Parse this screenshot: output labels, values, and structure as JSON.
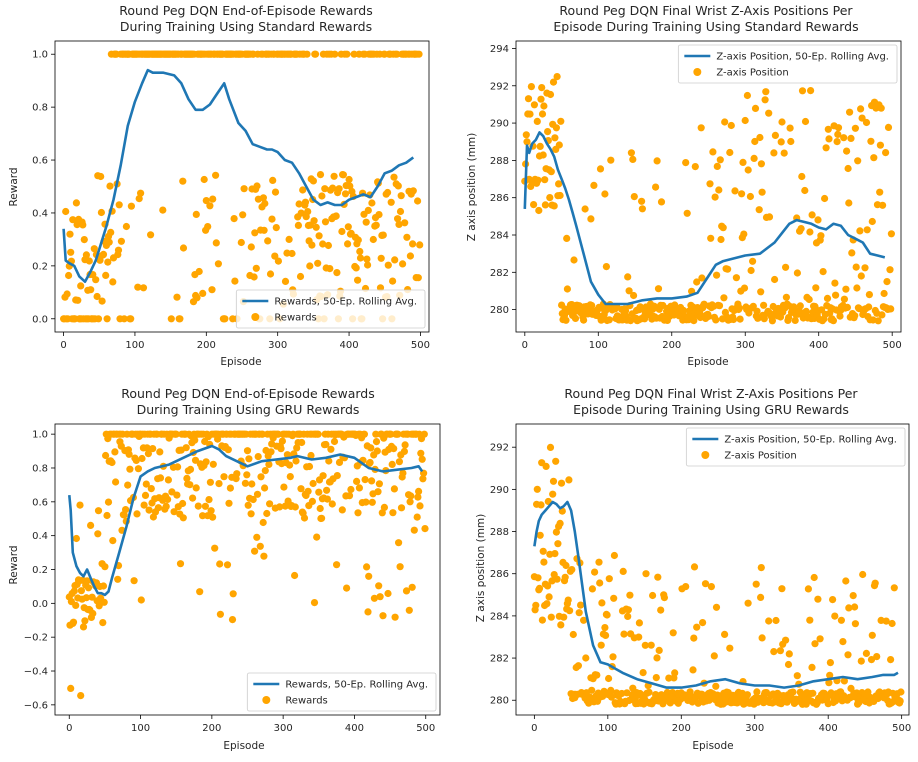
{
  "colors": {
    "line": "#1f77b4",
    "scatter": "#ffa500"
  },
  "chart_data": [
    {
      "type": "scatter",
      "title_line1": "Round Peg DQN End-of-Episode Rewards",
      "title_line2": "During Training Using Standard Rewards",
      "xlabel": "Episode",
      "ylabel": "Reward",
      "xlim": [
        -12,
        512
      ],
      "ylim": [
        -0.05,
        1.05
      ],
      "xticks": [
        0,
        100,
        200,
        300,
        400,
        500
      ],
      "yticks": [
        0.0,
        0.2,
        0.4,
        0.6,
        0.8,
        1.0
      ],
      "ytick_labels": [
        "0.0",
        "0.2",
        "0.4",
        "0.6",
        "0.8",
        "1.0"
      ],
      "legend": {
        "position": "lower-right",
        "line_label": "Rewards, 50-Ep. Rolling Avg.",
        "scatter_label": "Rewards"
      },
      "rolling_avg": {
        "x": [
          0,
          3,
          8,
          15,
          22,
          30,
          38,
          45,
          52,
          60,
          70,
          80,
          90,
          100,
          110,
          118,
          125,
          140,
          155,
          165,
          175,
          185,
          195,
          205,
          215,
          225,
          232,
          245,
          255,
          265,
          275,
          285,
          292,
          300,
          310,
          320,
          330,
          340,
          350,
          360,
          370,
          380,
          390,
          400,
          410,
          420,
          430,
          440,
          450,
          460,
          470,
          480,
          490
        ],
        "y": [
          0.34,
          0.22,
          0.21,
          0.2,
          0.16,
          0.14,
          0.18,
          0.22,
          0.28,
          0.35,
          0.45,
          0.58,
          0.73,
          0.82,
          0.89,
          0.94,
          0.93,
          0.93,
          0.92,
          0.89,
          0.83,
          0.79,
          0.79,
          0.81,
          0.85,
          0.89,
          0.83,
          0.74,
          0.71,
          0.66,
          0.65,
          0.64,
          0.64,
          0.63,
          0.6,
          0.59,
          0.55,
          0.5,
          0.45,
          0.43,
          0.44,
          0.43,
          0.43,
          0.45,
          0.46,
          0.47,
          0.46,
          0.5,
          0.55,
          0.56,
          0.58,
          0.59,
          0.61
        ]
      },
      "scatter": {
        "generated": true,
        "kind": "std_reward",
        "seed": 11
      }
    },
    {
      "type": "scatter",
      "title_line1": "Round Peg DQN Final Wrist Z-Axis Positions Per",
      "title_line2": "Episode During Training Using Standard Rewards",
      "xlabel": "Episode",
      "ylabel": "Z axis position (mm)",
      "xlim": [
        -12,
        512
      ],
      "ylim": [
        278.8,
        294.4
      ],
      "xticks": [
        0,
        100,
        200,
        300,
        400,
        500
      ],
      "yticks": [
        280,
        282,
        284,
        286,
        288,
        290,
        292,
        294
      ],
      "ytick_labels": [
        "280",
        "282",
        "284",
        "286",
        "288",
        "290",
        "292",
        "294"
      ],
      "legend": {
        "position": "upper-right",
        "line_label": "Z-axis Position, 50-Ep. Rolling Avg.",
        "scatter_label": "Z-axis Position"
      },
      "rolling_avg": {
        "x": [
          0,
          3,
          6,
          10,
          15,
          20,
          25,
          30,
          35,
          40,
          45,
          50,
          55,
          60,
          65,
          70,
          80,
          90,
          100,
          110,
          120,
          140,
          160,
          180,
          200,
          220,
          235,
          250,
          260,
          270,
          280,
          300,
          320,
          340,
          350,
          360,
          370,
          380,
          390,
          400,
          410,
          420,
          430,
          440,
          450,
          460,
          470,
          480,
          490
        ],
        "y": [
          285.4,
          288.8,
          288.4,
          288.9,
          289.1,
          289.5,
          289.3,
          288.9,
          288.6,
          288.2,
          287.5,
          287.0,
          286.5,
          285.9,
          285.2,
          284.5,
          283.0,
          281.5,
          280.8,
          280.3,
          280.3,
          280.3,
          280.5,
          280.6,
          280.6,
          280.7,
          280.9,
          281.8,
          282.4,
          282.6,
          282.7,
          282.9,
          283.0,
          283.6,
          284.1,
          284.6,
          284.8,
          284.7,
          284.6,
          284.4,
          284.3,
          284.6,
          284.5,
          284.0,
          283.8,
          283.6,
          283.0,
          282.9,
          282.8
        ]
      },
      "scatter": {
        "generated": true,
        "kind": "std_z",
        "seed": 23
      }
    },
    {
      "type": "scatter",
      "title_line1": "Round Peg DQN End-of-Episode Rewards",
      "title_line2": "During Training Using GRU Rewards",
      "xlabel": "Episode",
      "ylabel": "Reward",
      "xlim": [
        -20,
        520
      ],
      "ylim": [
        -0.66,
        1.06
      ],
      "xticks": [
        0,
        100,
        200,
        300,
        400,
        500
      ],
      "yticks": [
        -0.6,
        -0.4,
        -0.2,
        0.0,
        0.2,
        0.4,
        0.6,
        0.8,
        1.0
      ],
      "ytick_labels": [
        "−0.6",
        "−0.4",
        "−0.2",
        "0.0",
        "0.2",
        "0.4",
        "0.6",
        "0.8",
        "1.0"
      ],
      "legend": {
        "position": "lower-right",
        "line_label": "Rewards, 50-Ep. Rolling Avg.",
        "scatter_label": "Rewards"
      },
      "rolling_avg": {
        "x": [
          0,
          2,
          5,
          10,
          15,
          20,
          25,
          30,
          35,
          40,
          45,
          50,
          55,
          60,
          70,
          80,
          90,
          100,
          110,
          120,
          140,
          160,
          180,
          200,
          210,
          220,
          235,
          250,
          270,
          290,
          310,
          320,
          340,
          360,
          380,
          400,
          410,
          420,
          440,
          460,
          480,
          490,
          495
        ],
        "y": [
          0.64,
          0.55,
          0.3,
          0.22,
          0.18,
          0.16,
          0.2,
          0.15,
          0.1,
          0.06,
          0.06,
          0.05,
          0.07,
          0.15,
          0.3,
          0.45,
          0.62,
          0.75,
          0.78,
          0.8,
          0.82,
          0.86,
          0.9,
          0.93,
          0.91,
          0.87,
          0.84,
          0.81,
          0.84,
          0.85,
          0.86,
          0.87,
          0.85,
          0.86,
          0.88,
          0.86,
          0.83,
          0.8,
          0.78,
          0.79,
          0.8,
          0.81,
          0.78
        ]
      },
      "scatter": {
        "generated": true,
        "kind": "gru_reward",
        "seed": 37
      }
    },
    {
      "type": "scatter",
      "title_line1": "Round Peg DQN Final Wrist Z-Axis Positions Per",
      "title_line2": "Episode During Training Using GRU Rewards",
      "xlabel": "Episode",
      "ylabel": "Z axis position (mm)",
      "xlim": [
        -25,
        510
      ],
      "ylim": [
        279.3,
        293.1
      ],
      "xticks": [
        0,
        100,
        200,
        300,
        400,
        500
      ],
      "yticks": [
        280,
        282,
        284,
        286,
        288,
        290,
        292
      ],
      "ytick_labels": [
        "280",
        "282",
        "284",
        "286",
        "288",
        "290",
        "292"
      ],
      "legend": {
        "position": "upper-right",
        "line_label": "Z-axis Position, 50-Ep. Rolling Avg.",
        "scatter_label": "Z-axis Position"
      },
      "rolling_avg": {
        "x": [
          0,
          3,
          6,
          10,
          15,
          20,
          25,
          30,
          35,
          40,
          45,
          50,
          55,
          60,
          65,
          70,
          80,
          90,
          100,
          110,
          120,
          140,
          160,
          180,
          200,
          220,
          240,
          260,
          280,
          300,
          320,
          340,
          360,
          380,
          400,
          420,
          440,
          460,
          475,
          490,
          495
        ],
        "y": [
          287.3,
          288.0,
          288.5,
          288.8,
          289.0,
          289.2,
          289.4,
          289.3,
          289.1,
          289.2,
          289.4,
          289.0,
          288.0,
          286.8,
          285.5,
          284.2,
          282.6,
          281.8,
          281.7,
          281.5,
          281.3,
          281.0,
          280.8,
          280.6,
          280.6,
          280.7,
          280.9,
          281.0,
          280.8,
          280.7,
          280.7,
          280.6,
          280.7,
          280.9,
          281.0,
          281.1,
          281.0,
          281.1,
          281.2,
          281.2,
          281.3
        ]
      },
      "scatter": {
        "generated": true,
        "kind": "gru_z",
        "seed": 53
      }
    }
  ]
}
